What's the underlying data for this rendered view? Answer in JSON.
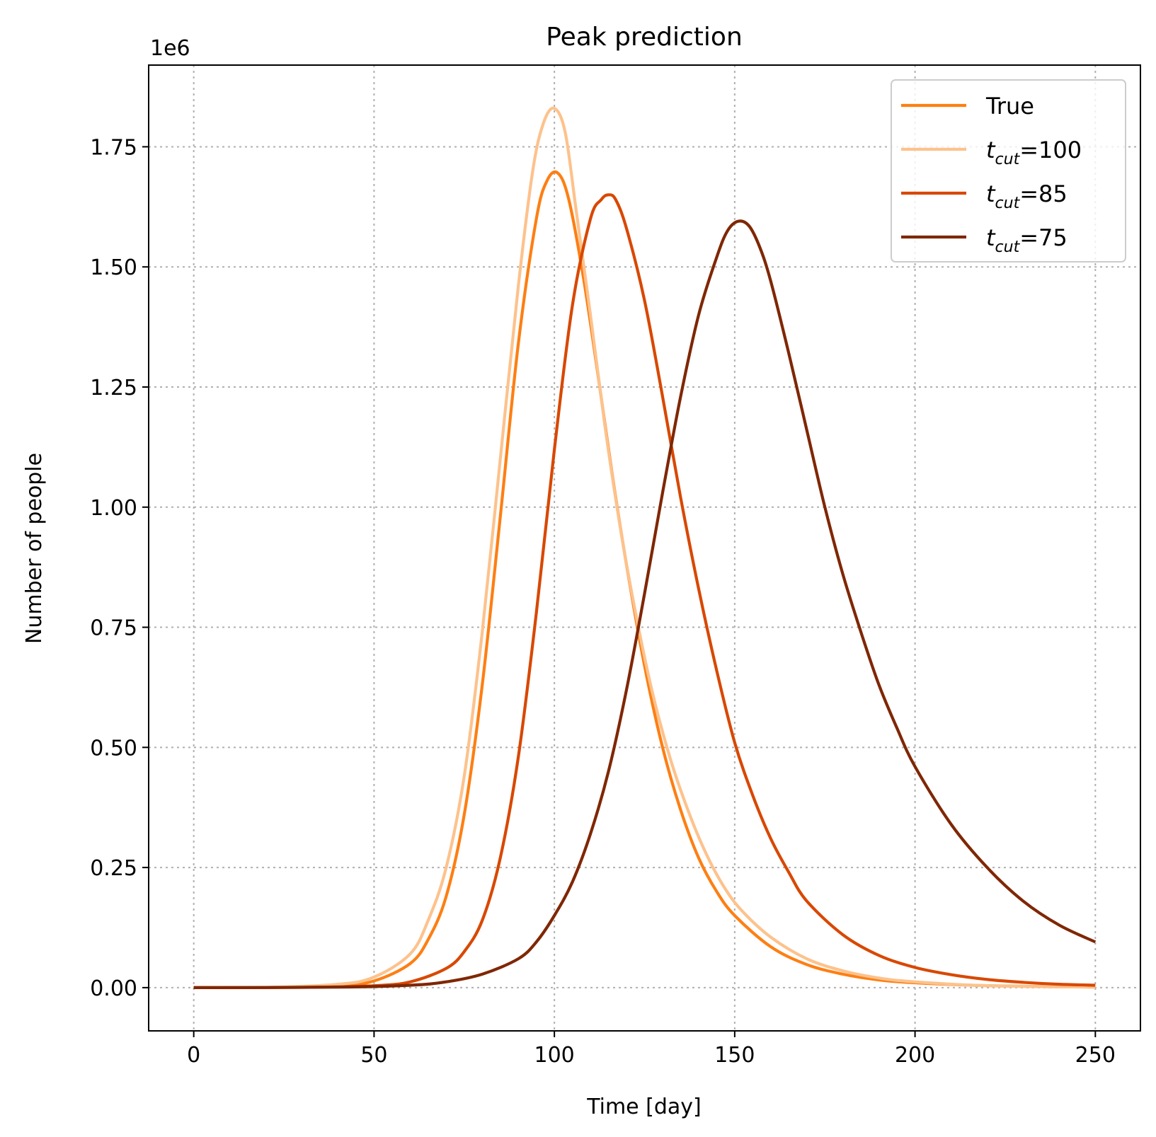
{
  "chart_data": {
    "type": "line",
    "title": "Peak prediction",
    "xlabel": "Time [day]",
    "ylabel": "Number of people",
    "y_offset_label": "1e6",
    "xlim": [
      -12.5,
      262.5
    ],
    "ylim": [
      -0.09,
      1.92
    ],
    "y_scale_factor": 1000000,
    "xticks": [
      0,
      50,
      100,
      150,
      200,
      250
    ],
    "xtick_labels": [
      "0",
      "50",
      "100",
      "150",
      "200",
      "250"
    ],
    "yticks": [
      0,
      0.25,
      0.5,
      0.75,
      1.0,
      1.25,
      1.5,
      1.75
    ],
    "ytick_labels": [
      "0.00",
      "0.25",
      "0.50",
      "0.75",
      "1.00",
      "1.25",
      "1.50",
      "1.75"
    ],
    "grid": true,
    "legend_position": "top-right",
    "series": [
      {
        "name": "True",
        "label_base": "True",
        "label_sub": "",
        "label_suffix": "",
        "color": "#fd7f13",
        "x": [
          0,
          20,
          40,
          50,
          60,
          65,
          70,
          75,
          80,
          85,
          90,
          95,
          98,
          101,
          104,
          108,
          112,
          116,
          120,
          125,
          130,
          135,
          140,
          145,
          150,
          160,
          170,
          180,
          190,
          200,
          220,
          250
        ],
        "y": [
          0,
          0.0003,
          0.004,
          0.014,
          0.05,
          0.1,
          0.19,
          0.36,
          0.63,
          0.98,
          1.34,
          1.6,
          1.68,
          1.695,
          1.64,
          1.48,
          1.28,
          1.07,
          0.88,
          0.67,
          0.5,
          0.37,
          0.27,
          0.2,
          0.15,
          0.085,
          0.048,
          0.028,
          0.016,
          0.01,
          0.004,
          0.001
        ]
      },
      {
        "name": "t_cut=100",
        "label_base": "t",
        "label_sub": "cut",
        "label_suffix": "=100",
        "color": "#fdc28c",
        "x": [
          0,
          20,
          40,
          50,
          60,
          65,
          70,
          75,
          80,
          85,
          90,
          94,
          97,
          100,
          103,
          106,
          110,
          114,
          118,
          122,
          127,
          132,
          137,
          142,
          147,
          152,
          160,
          170,
          180,
          190,
          200,
          220,
          250
        ],
        "y": [
          0,
          0.0005,
          0.007,
          0.022,
          0.07,
          0.14,
          0.25,
          0.44,
          0.74,
          1.1,
          1.46,
          1.7,
          1.8,
          1.83,
          1.78,
          1.62,
          1.4,
          1.17,
          0.97,
          0.8,
          0.62,
          0.48,
          0.37,
          0.28,
          0.21,
          0.16,
          0.105,
          0.06,
          0.035,
          0.02,
          0.012,
          0.004,
          0.001
        ]
      },
      {
        "name": "t_cut=85",
        "label_base": "t",
        "label_sub": "cut",
        "label_suffix": "=85",
        "color": "#d84801",
        "x": [
          0,
          30,
          50,
          60,
          70,
          75,
          80,
          85,
          90,
          95,
          100,
          105,
          110,
          113,
          115,
          117,
          120,
          125,
          130,
          135,
          140,
          145,
          150,
          155,
          160,
          165,
          170,
          180,
          190,
          200,
          210,
          220,
          230,
          240,
          250
        ],
        "y": [
          0,
          0.0005,
          0.004,
          0.012,
          0.04,
          0.075,
          0.14,
          0.27,
          0.48,
          0.78,
          1.12,
          1.42,
          1.6,
          1.64,
          1.65,
          1.64,
          1.58,
          1.43,
          1.23,
          1.02,
          0.83,
          0.66,
          0.51,
          0.4,
          0.31,
          0.24,
          0.18,
          0.11,
          0.067,
          0.042,
          0.027,
          0.017,
          0.011,
          0.007,
          0.005
        ]
      },
      {
        "name": "t_cut=75",
        "label_base": "t",
        "label_sub": "cut",
        "label_suffix": "=75",
        "color": "#7f2704",
        "x": [
          0,
          40,
          60,
          70,
          80,
          90,
          95,
          100,
          105,
          110,
          115,
          120,
          125,
          130,
          135,
          140,
          145,
          148,
          151,
          154,
          157,
          160,
          165,
          170,
          175,
          180,
          185,
          190,
          195,
          200,
          210,
          220,
          230,
          240,
          250
        ],
        "y": [
          0,
          0.001,
          0.005,
          0.012,
          0.028,
          0.06,
          0.095,
          0.15,
          0.22,
          0.32,
          0.45,
          0.62,
          0.82,
          1.03,
          1.23,
          1.4,
          1.52,
          1.575,
          1.595,
          1.585,
          1.54,
          1.47,
          1.32,
          1.16,
          1.0,
          0.86,
          0.74,
          0.63,
          0.54,
          0.46,
          0.34,
          0.25,
          0.18,
          0.13,
          0.095
        ]
      }
    ]
  }
}
